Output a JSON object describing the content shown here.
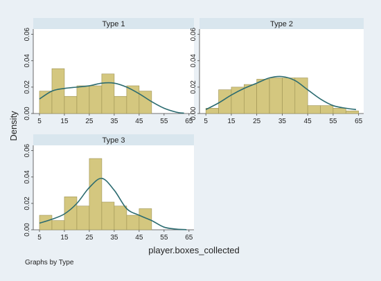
{
  "figure": {
    "ylabel": "Density",
    "xlabel": "player.boxes_collected",
    "note": "Graphs by Type"
  },
  "colors": {
    "outer_bg": "#eaf0f5",
    "plot_bg": "#ffffff",
    "strip_bg": "#d9e6ee",
    "bar_fill": "#d4c77f",
    "bar_stroke": "#9c9152",
    "density_line": "#2b6b70",
    "text": "#222222",
    "axis": "#444444"
  },
  "chart_data": [
    {
      "type": "bar",
      "title": "Type 1",
      "x_ticks": [
        5,
        15,
        25,
        35,
        45,
        55,
        65
      ],
      "y_ticks": [
        "0.00",
        "0.02",
        "0.04",
        "0.06"
      ],
      "xlim": [
        2.5,
        67
      ],
      "ylim": [
        0,
        0.064
      ],
      "bins": [
        {
          "x0": 5,
          "x1": 10,
          "density": 0.017
        },
        {
          "x0": 10,
          "x1": 15,
          "density": 0.034
        },
        {
          "x0": 15,
          "x1": 20,
          "density": 0.013
        },
        {
          "x0": 20,
          "x1": 25,
          "density": 0.021
        },
        {
          "x0": 25,
          "x1": 30,
          "density": 0.021
        },
        {
          "x0": 30,
          "x1": 35,
          "density": 0.03
        },
        {
          "x0": 35,
          "x1": 40,
          "density": 0.013
        },
        {
          "x0": 40,
          "x1": 45,
          "density": 0.021
        },
        {
          "x0": 45,
          "x1": 50,
          "density": 0.017
        }
      ],
      "density_curve": [
        [
          5,
          0.011
        ],
        [
          10,
          0.017
        ],
        [
          15,
          0.019
        ],
        [
          20,
          0.02
        ],
        [
          25,
          0.021
        ],
        [
          30,
          0.023
        ],
        [
          35,
          0.023
        ],
        [
          40,
          0.02
        ],
        [
          45,
          0.015
        ],
        [
          50,
          0.009
        ],
        [
          55,
          0.004
        ],
        [
          60,
          0.001
        ],
        [
          63,
          0.0003
        ]
      ]
    },
    {
      "type": "bar",
      "title": "Type 2",
      "x_ticks": [
        5,
        15,
        25,
        35,
        45,
        55,
        65
      ],
      "y_ticks": [
        "0.00",
        "0.02",
        "0.04",
        "0.06"
      ],
      "xlim": [
        2.5,
        67
      ],
      "ylim": [
        0,
        0.064
      ],
      "bins": [
        {
          "x0": 5,
          "x1": 10,
          "density": 0.004
        },
        {
          "x0": 10,
          "x1": 15,
          "density": 0.018
        },
        {
          "x0": 15,
          "x1": 20,
          "density": 0.02
        },
        {
          "x0": 20,
          "x1": 25,
          "density": 0.022
        },
        {
          "x0": 25,
          "x1": 30,
          "density": 0.026
        },
        {
          "x0": 30,
          "x1": 35,
          "density": 0.027
        },
        {
          "x0": 35,
          "x1": 40,
          "density": 0.027
        },
        {
          "x0": 40,
          "x1": 45,
          "density": 0.027
        },
        {
          "x0": 45,
          "x1": 50,
          "density": 0.006
        },
        {
          "x0": 50,
          "x1": 55,
          "density": 0.006
        },
        {
          "x0": 55,
          "x1": 60,
          "density": 0.004
        },
        {
          "x0": 60,
          "x1": 65,
          "density": 0.002
        }
      ],
      "density_curve": [
        [
          5,
          0.003
        ],
        [
          10,
          0.008
        ],
        [
          15,
          0.014
        ],
        [
          20,
          0.019
        ],
        [
          25,
          0.023
        ],
        [
          30,
          0.027
        ],
        [
          35,
          0.028
        ],
        [
          40,
          0.025
        ],
        [
          45,
          0.018
        ],
        [
          50,
          0.011
        ],
        [
          55,
          0.006
        ],
        [
          60,
          0.004
        ],
        [
          64,
          0.003
        ]
      ]
    },
    {
      "type": "bar",
      "title": "Type 3",
      "x_ticks": [
        5,
        15,
        25,
        35,
        45,
        55,
        65
      ],
      "y_ticks": [
        "0.00",
        "0.02",
        "0.04",
        "0.06"
      ],
      "xlim": [
        2.5,
        67
      ],
      "ylim": [
        0,
        0.064
      ],
      "bins": [
        {
          "x0": 5,
          "x1": 10,
          "density": 0.011
        },
        {
          "x0": 10,
          "x1": 15,
          "density": 0.007
        },
        {
          "x0": 15,
          "x1": 20,
          "density": 0.025
        },
        {
          "x0": 20,
          "x1": 25,
          "density": 0.018
        },
        {
          "x0": 25,
          "x1": 30,
          "density": 0.054
        },
        {
          "x0": 30,
          "x1": 35,
          "density": 0.021
        },
        {
          "x0": 35,
          "x1": 40,
          "density": 0.018
        },
        {
          "x0": 40,
          "x1": 45,
          "density": 0.011
        },
        {
          "x0": 45,
          "x1": 50,
          "density": 0.016
        }
      ],
      "density_curve": [
        [
          5,
          0.005
        ],
        [
          10,
          0.008
        ],
        [
          15,
          0.012
        ],
        [
          20,
          0.02
        ],
        [
          25,
          0.032
        ],
        [
          30,
          0.039
        ],
        [
          35,
          0.03
        ],
        [
          40,
          0.016
        ],
        [
          45,
          0.011
        ],
        [
          50,
          0.007
        ],
        [
          55,
          0.002
        ],
        [
          60,
          0.0005
        ],
        [
          64,
          0.0001
        ]
      ]
    }
  ]
}
